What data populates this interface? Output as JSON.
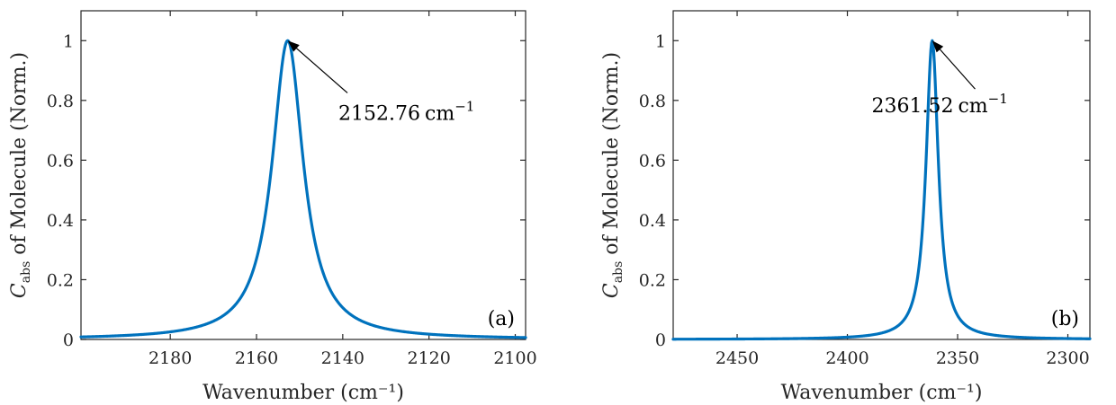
{
  "chart_data": [
    {
      "type": "line",
      "panel_label": "(a)",
      "xlabel": "Wavenumber (cm⁻¹)",
      "ylabel_main": "C",
      "ylabel_sub": "abs",
      "ylabel_rest": " of Molecule (Norm.)",
      "xlim": [
        2200.7,
        2097.6
      ],
      "x_reversed": true,
      "ylim": [
        0,
        1.1
      ],
      "xticks": [
        2180,
        2160,
        2140,
        2120,
        2100
      ],
      "yticks": [
        0,
        0.2,
        0.4,
        0.6,
        0.8,
        1
      ],
      "ytick_labels": [
        "0",
        "0.2",
        "0.4",
        "0.6",
        "0.8",
        "1"
      ],
      "grid": false,
      "series": [
        {
          "color": "#0072BD",
          "peak_x": 2152.76,
          "hwhm": 4.4,
          "x": [
            2200.7,
            2190,
            2180,
            2175,
            2170,
            2165,
            2162,
            2160,
            2158,
            2156,
            2155,
            2154,
            2153.5,
            2152.76,
            2152,
            2151,
            2150,
            2149,
            2148,
            2146,
            2144,
            2142,
            2140,
            2135,
            2130,
            2120,
            2110,
            2100,
            2097.6
          ],
          "y": [
            0.008,
            0.013,
            0.025,
            0.037,
            0.061,
            0.137,
            0.196,
            0.274,
            0.411,
            0.647,
            0.797,
            0.927,
            0.972,
            1.0,
            0.971,
            0.89,
            0.718,
            0.577,
            0.472,
            0.289,
            0.185,
            0.133,
            0.101,
            0.057,
            0.035,
            0.017,
            0.01,
            0.007,
            0.006
          ]
        }
      ],
      "annotation": {
        "text_main": "2152.76",
        "text_unit": "cm",
        "text_sup": "−1",
        "point_x": 2152.76,
        "point_y": 1.0,
        "text_x": 2141.0,
        "text_y": 0.735
      }
    },
    {
      "type": "line",
      "panel_label": "(b)",
      "xlabel": "Wavenumber (cm⁻¹)",
      "ylabel_main": "C",
      "ylabel_sub": "abs",
      "ylabel_rest": " of Molecule (Norm.)",
      "xlim": [
        2479,
        2290
      ],
      "x_reversed": true,
      "ylim": [
        0,
        1.1
      ],
      "xticks": [
        2450,
        2400,
        2350,
        2300
      ],
      "yticks": [
        0,
        0.2,
        0.4,
        0.6,
        0.8,
        1
      ],
      "ytick_labels": [
        "0",
        "0.2",
        "0.4",
        "0.6",
        "0.8",
        "1"
      ],
      "grid": false,
      "series": [
        {
          "color": "#0072BD",
          "peak_x": 2361.52,
          "hwhm": 3.4,
          "x": [
            2479,
            2450,
            2420,
            2400,
            2390,
            2380,
            2375,
            2370,
            2367,
            2365,
            2364,
            2363,
            2362,
            2361.52,
            2361,
            2360,
            2359,
            2358,
            2357,
            2355,
            2352,
            2350,
            2345,
            2340,
            2330,
            2320,
            2310,
            2300,
            2290
          ],
          "y": [
            0.001,
            0.002,
            0.004,
            0.008,
            0.014,
            0.033,
            0.06,
            0.137,
            0.277,
            0.486,
            0.653,
            0.837,
            0.98,
            1.0,
            0.976,
            0.833,
            0.646,
            0.487,
            0.354,
            0.218,
            0.112,
            0.08,
            0.041,
            0.024,
            0.012,
            0.006,
            0.004,
            0.003,
            0.002
          ]
        }
      ],
      "annotation": {
        "text_main": "2361.52",
        "text_unit": "cm",
        "text_sup": "−1",
        "point_x": 2361.52,
        "point_y": 1.0,
        "text_x": 2389.0,
        "text_y": 0.76
      }
    }
  ]
}
